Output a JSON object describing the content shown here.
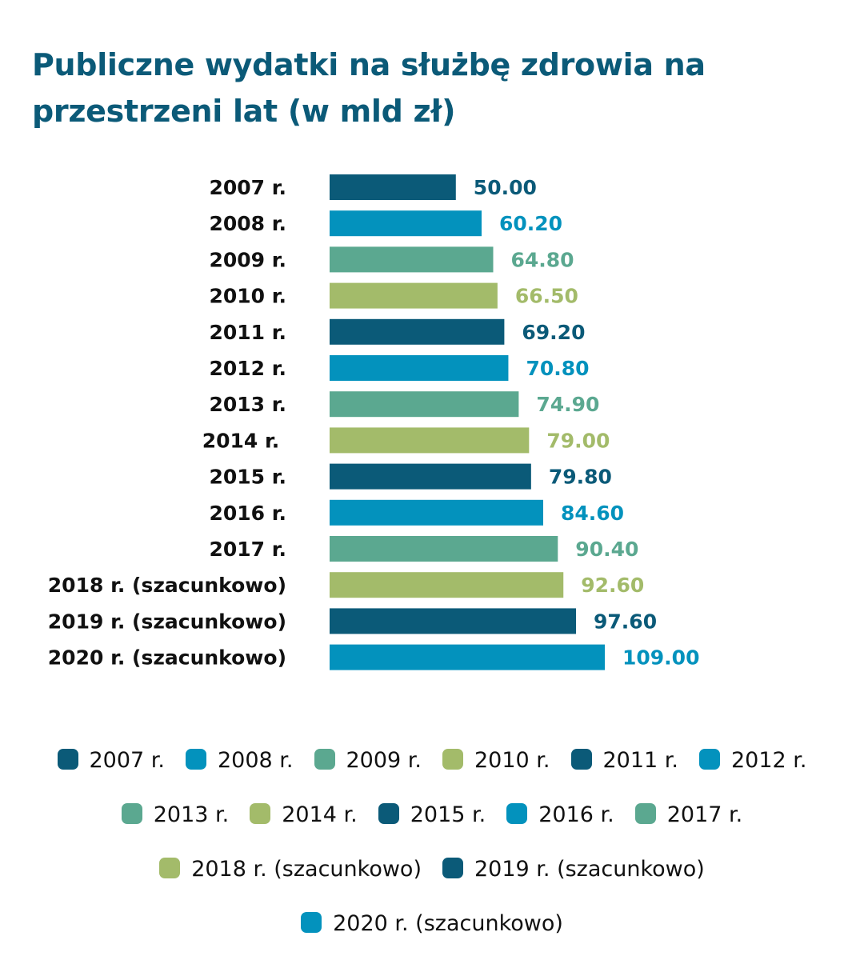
{
  "title": {
    "line1": "Publiczne wydatki na służbę zdrowia na",
    "line2": "przestrzeni lat (w mld zł)"
  },
  "palette": {
    "dark": "#0b5a78",
    "blue": "#0392bd",
    "teal": "#5ba890",
    "olive": "#a3bb6a"
  },
  "chart_data": {
    "type": "bar",
    "orientation": "horizontal",
    "title": "Publiczne wydatki na służbę zdrowia na przestrzeni lat (w mld zł)",
    "xlabel": "",
    "ylabel": "",
    "xlim": [
      0,
      109
    ],
    "grid": false,
    "axes_visible": false,
    "legend_position": "bottom",
    "categories": [
      "2007 r.",
      "2008 r.",
      "2009 r.",
      "2010 r.",
      "2011 r.",
      "2012 r.",
      "2013 r.",
      "2014 r. ",
      "2015 r.",
      "2016 r.",
      "2017 r.",
      "2018 r. (szacunkowo)",
      "2019 r. (szacunkowo)",
      "2020 r. (szacunkowo)"
    ],
    "values": [
      50.0,
      60.2,
      64.8,
      66.5,
      69.2,
      70.8,
      74.9,
      79.0,
      79.8,
      84.6,
      90.4,
      92.6,
      97.6,
      109.0
    ],
    "data_labels": [
      "50.00",
      "60.20",
      "64.80",
      "66.50",
      "69.20",
      "70.80",
      "74.90",
      "79.00",
      "79.80",
      "84.60",
      "90.40",
      "92.60",
      "97.60",
      "109.00"
    ],
    "colors": [
      "#0b5a78",
      "#0392bd",
      "#5ba890",
      "#a3bb6a",
      "#0b5a78",
      "#0392bd",
      "#5ba890",
      "#a3bb6a",
      "#0b5a78",
      "#0392bd",
      "#5ba890",
      "#a3bb6a",
      "#0b5a78",
      "#0392bd"
    ],
    "legend": [
      [
        "2007 r.",
        "2008 r.",
        "2009 r.",
        "2010 r.",
        "2011 r.",
        "2012 r."
      ],
      [
        "2013 r.",
        "2014 r.",
        "2015 r.",
        "2016 r.",
        "2017 r."
      ],
      [
        "2018 r. (szacunkowo)",
        "2019 r. (szacunkowo)"
      ],
      [
        "2020 r. (szacunkowo)"
      ]
    ]
  }
}
